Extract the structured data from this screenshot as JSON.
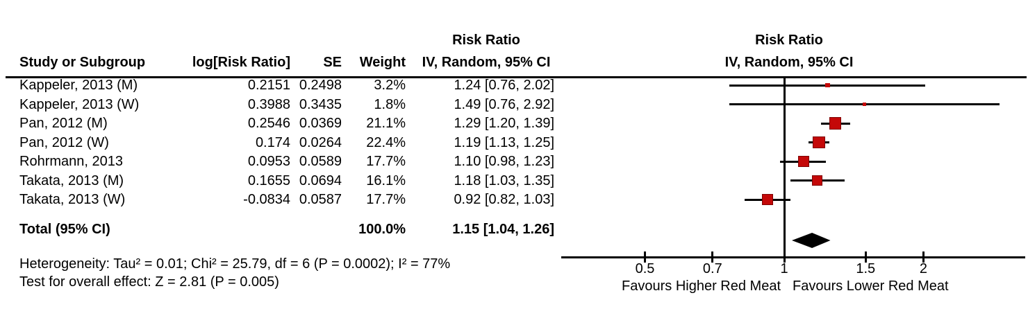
{
  "table": {
    "headers": {
      "stats_group_line1": "Risk Ratio",
      "study": "Study or Subgroup",
      "log_rr": "log[Risk Ratio]",
      "se": "SE",
      "weight": "Weight",
      "ci": "IV, Random, 95% CI"
    },
    "rows": [
      {
        "study": "Kappeler, 2013 (M)",
        "log_rr": "0.2151",
        "se": "0.2498",
        "weight": "3.2%",
        "ci": "1.24 [0.76, 2.02]"
      },
      {
        "study": "Kappeler, 2013 (W)",
        "log_rr": "0.3988",
        "se": "0.3435",
        "weight": "1.8%",
        "ci": "1.49 [0.76, 2.92]"
      },
      {
        "study": "Pan, 2012 (M)",
        "log_rr": "0.2546",
        "se": "0.0369",
        "weight": "21.1%",
        "ci": "1.29 [1.20, 1.39]"
      },
      {
        "study": "Pan, 2012 (W)",
        "log_rr": "0.174",
        "se": "0.0264",
        "weight": "22.4%",
        "ci": "1.19 [1.13, 1.25]"
      },
      {
        "study": "Rohrmann, 2013",
        "log_rr": "0.0953",
        "se": "0.0589",
        "weight": "17.7%",
        "ci": "1.10 [0.98, 1.23]"
      },
      {
        "study": "Takata, 2013 (M)",
        "log_rr": "0.1655",
        "se": "0.0694",
        "weight": "16.1%",
        "ci": "1.18 [1.03, 1.35]"
      },
      {
        "study": "Takata, 2013 (W)",
        "log_rr": "-0.0834",
        "se": "0.0587",
        "weight": "17.7%",
        "ci": "0.92 [0.82, 1.03]"
      }
    ],
    "total": {
      "label": "Total (95% CI)",
      "weight": "100.0%",
      "ci": "1.15 [1.04, 1.26]"
    },
    "footer": {
      "heterogeneity": "Heterogeneity: Tau² = 0.01; Chi² = 25.79, df = 6 (P = 0.0002); I² = 77%",
      "overall_effect": "Test for overall effect: Z = 2.81 (P = 0.005)"
    }
  },
  "plot": {
    "header_line1": "Risk Ratio",
    "header_line2": "IV, Random, 95% CI",
    "favours_left": "Favours Higher Red Meat",
    "favours_right": "Favours Lower Red Meat",
    "marker_color": "#c40808",
    "line_color": "#000000"
  },
  "chart_data": {
    "type": "forest",
    "effect_measure": "Risk Ratio",
    "model": "IV, Random, 95% CI",
    "x_scale": "log",
    "axis_ticks": [
      0.5,
      0.7,
      1,
      1.5,
      2
    ],
    "null_value": 1,
    "studies": [
      {
        "name": "Kappeler, 2013 (M)",
        "rr": 1.24,
        "ci_low": 0.76,
        "ci_high": 2.02,
        "weight_pct": 3.2
      },
      {
        "name": "Kappeler, 2013 (W)",
        "rr": 1.49,
        "ci_low": 0.76,
        "ci_high": 2.92,
        "weight_pct": 1.8
      },
      {
        "name": "Pan, 2012 (M)",
        "rr": 1.29,
        "ci_low": 1.2,
        "ci_high": 1.39,
        "weight_pct": 21.1
      },
      {
        "name": "Pan, 2012 (W)",
        "rr": 1.19,
        "ci_low": 1.13,
        "ci_high": 1.25,
        "weight_pct": 22.4
      },
      {
        "name": "Rohrmann, 2013",
        "rr": 1.1,
        "ci_low": 0.98,
        "ci_high": 1.23,
        "weight_pct": 17.7
      },
      {
        "name": "Takata, 2013 (M)",
        "rr": 1.18,
        "ci_low": 1.03,
        "ci_high": 1.35,
        "weight_pct": 16.1
      },
      {
        "name": "Takata, 2013 (W)",
        "rr": 0.92,
        "ci_low": 0.82,
        "ci_high": 1.03,
        "weight_pct": 17.7
      }
    ],
    "total": {
      "rr": 1.15,
      "ci_low": 1.04,
      "ci_high": 1.26,
      "weight_pct": 100.0
    }
  }
}
